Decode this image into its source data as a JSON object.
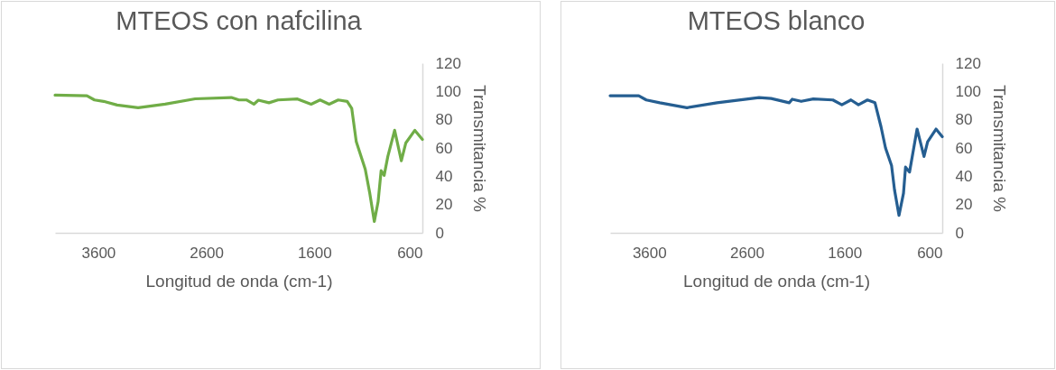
{
  "chart_data": [
    {
      "type": "line",
      "title": "MTEOS con nafcilina",
      "xlabel": "Longitud de onda (cm-1)",
      "ylabel": "Transmitancia %",
      "x": [
        4000,
        3705,
        3635,
        3551,
        3426,
        3231,
        2981,
        2703,
        2368,
        2298,
        2229,
        2160,
        2118,
        2020,
        1937,
        1756,
        1630,
        1547,
        1463,
        1379,
        1296,
        1254,
        1212,
        1129,
        1087,
        1045,
        1010,
        982,
        954,
        920,
        857,
        795,
        754,
        670,
        600
      ],
      "series": [
        {
          "color": "#70ad47",
          "values": [
            97.4,
            97,
            94,
            93,
            90.4,
            88.5,
            91,
            94.8,
            95.7,
            94,
            94,
            91,
            93.8,
            92,
            94,
            94.7,
            91,
            94,
            91,
            94,
            93,
            88,
            64.4,
            45,
            28,
            8,
            22,
            44,
            40.6,
            54,
            72.5,
            51,
            63.5,
            72.5,
            66
          ]
        }
      ],
      "xlim": [
        4000,
        600
      ],
      "xticks": [
        3600,
        2600,
        1600,
        600
      ],
      "ylim": [
        0,
        120
      ],
      "yticks": [
        0,
        20,
        40,
        60,
        80,
        100,
        120
      ]
    },
    {
      "type": "line",
      "title": "MTEOS blanco",
      "xlabel": "Longitud de onda (cm-1)",
      "ylabel": "Transmitancia %",
      "x": [
        4000,
        3707,
        3630,
        3492,
        3214,
        2906,
        2475,
        2352,
        2167,
        2136,
        2044,
        1920,
        1720,
        1628,
        1535,
        1458,
        1366,
        1289,
        1227,
        1181,
        1119,
        1089,
        1043,
        997,
        976,
        935,
        858,
        787,
        750,
        664,
        600
      ],
      "series": [
        {
          "color": "#255e91",
          "values": [
            97,
            97,
            94,
            92,
            88.5,
            92,
            95.7,
            95,
            92,
            94.5,
            93,
            94.7,
            94,
            90.6,
            94,
            90.6,
            94,
            92,
            75,
            60,
            47.5,
            30.4,
            12.3,
            28,
            46.5,
            43,
            73.4,
            54,
            64.4,
            73.4,
            68
          ]
        }
      ],
      "xlim": [
        4000,
        600
      ],
      "xticks": [
        3600,
        2600,
        1600,
        600
      ],
      "ylim": [
        0,
        120
      ],
      "yticks": [
        0,
        20,
        40,
        60,
        80,
        100,
        120
      ]
    }
  ]
}
